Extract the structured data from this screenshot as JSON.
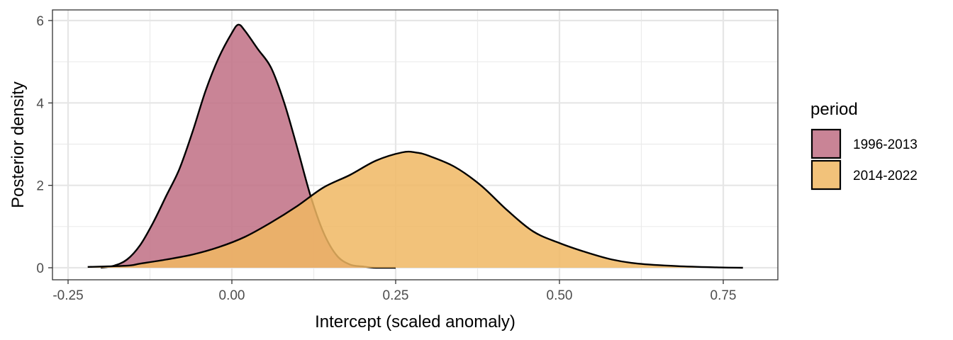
{
  "chart_data": {
    "type": "area",
    "title": "",
    "xlabel": "Intercept (scaled anomaly)",
    "ylabel": "Posterior density",
    "xlim": [
      -0.25,
      0.78
    ],
    "ylim": [
      0,
      6
    ],
    "xticks": [
      -0.25,
      0.0,
      0.25,
      0.5,
      0.75
    ],
    "xtick_labels": [
      "-0.25",
      "0.00",
      "0.25",
      "0.50",
      "0.75"
    ],
    "yticks": [
      0,
      2,
      4,
      6
    ],
    "ytick_labels": [
      "0",
      "2",
      "4",
      "6"
    ],
    "grid": true,
    "legend": {
      "title": "period",
      "position": "right"
    },
    "series": [
      {
        "name": "1996-2013",
        "color": "#c06e84",
        "x": [
          -0.2,
          -0.18,
          -0.16,
          -0.14,
          -0.12,
          -0.1,
          -0.08,
          -0.06,
          -0.04,
          -0.02,
          0.0,
          0.01,
          0.02,
          0.04,
          0.06,
          0.08,
          0.1,
          0.12,
          0.14,
          0.16,
          0.18,
          0.2,
          0.22,
          0.25
        ],
        "values": [
          0.0,
          0.05,
          0.2,
          0.55,
          1.1,
          1.75,
          2.4,
          3.3,
          4.3,
          5.1,
          5.7,
          5.9,
          5.75,
          5.3,
          4.85,
          4.0,
          2.9,
          1.75,
          0.85,
          0.3,
          0.08,
          0.03,
          0.0,
          0.0
        ]
      },
      {
        "name": "2014-2022",
        "color": "#f0b763",
        "x": [
          -0.22,
          -0.16,
          -0.14,
          -0.1,
          -0.06,
          -0.02,
          0.02,
          0.06,
          0.1,
          0.14,
          0.18,
          0.22,
          0.26,
          0.28,
          0.3,
          0.34,
          0.38,
          0.42,
          0.46,
          0.5,
          0.54,
          0.58,
          0.62,
          0.68,
          0.74,
          0.78
        ],
        "values": [
          0.02,
          0.05,
          0.1,
          0.2,
          0.32,
          0.5,
          0.75,
          1.1,
          1.5,
          1.95,
          2.25,
          2.6,
          2.8,
          2.8,
          2.72,
          2.45,
          2.0,
          1.4,
          0.88,
          0.6,
          0.38,
          0.2,
          0.1,
          0.04,
          0.01,
          0.0
        ]
      }
    ]
  }
}
